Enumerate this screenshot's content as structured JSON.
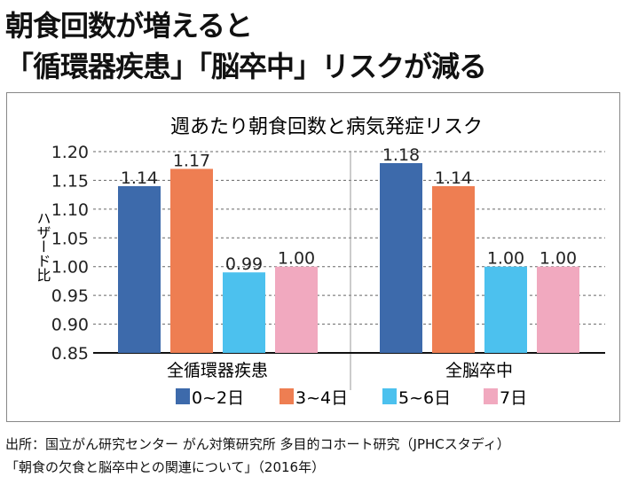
{
  "headline": {
    "line1": "朝食回数が増えると",
    "line2": "「循環器疾患」「脳卒中」リスクが減る"
  },
  "chart_data": {
    "type": "bar",
    "title": "週あたり朝食回数と病気発症リスク",
    "ylabel": "ハザード比",
    "xlabel": "",
    "ylim": [
      0.85,
      1.2
    ],
    "yticks": [
      "0.85",
      "0.90",
      "0.95",
      "1.00",
      "1.05",
      "1.10",
      "1.15",
      "1.20"
    ],
    "grid": true,
    "legend_position": "bottom",
    "categories": [
      "全循環器疾患",
      "全脳卒中"
    ],
    "series": [
      {
        "name": "0~2日",
        "color": "#3d6aab",
        "values": [
          1.14,
          1.18
        ],
        "labels": [
          "1.14",
          "1.18"
        ]
      },
      {
        "name": "3~4日",
        "color": "#ee7e52",
        "values": [
          1.17,
          1.14
        ],
        "labels": [
          "1.17",
          "1.14"
        ]
      },
      {
        "name": "5~6日",
        "color": "#4cc1ee",
        "values": [
          0.99,
          1.0
        ],
        "labels": [
          "0.99",
          "1.00"
        ]
      },
      {
        "name": "7日",
        "color": "#f1a9bf",
        "values": [
          1.0,
          1.0
        ],
        "labels": [
          "1.00",
          "1.00"
        ]
      }
    ]
  },
  "footer": {
    "source": "出所：国立がん研究センター がん対策研究所 多目的コホート研究（JPHCスタディ）",
    "report": "「朝食の欠食と脳卒中との関連について」（2016年）"
  }
}
